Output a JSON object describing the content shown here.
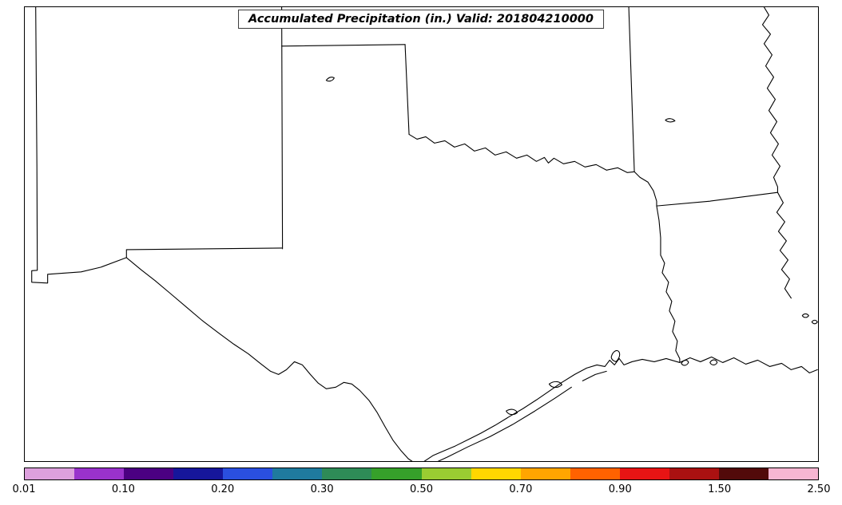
{
  "title": "Accumulated Precipitation (in.) Valid: 201804210000",
  "colorbar": {
    "ticks": [
      "0.01",
      "0.10",
      "0.20",
      "0.30",
      "0.50",
      "0.70",
      "0.90",
      "1.50",
      "2.50"
    ],
    "colors": [
      "#DDA0DD",
      "#9932CC",
      "#4B0082",
      "#16169B",
      "#2A4FDF",
      "#1F7A9E",
      "#2E8B57",
      "#36A02A",
      "#9ACD32",
      "#FFD700",
      "#FFA500",
      "#FF6200",
      "#E81414",
      "#AA1111",
      "#520A0A",
      "#F7B6D2"
    ],
    "outline_color": "#000000"
  }
}
